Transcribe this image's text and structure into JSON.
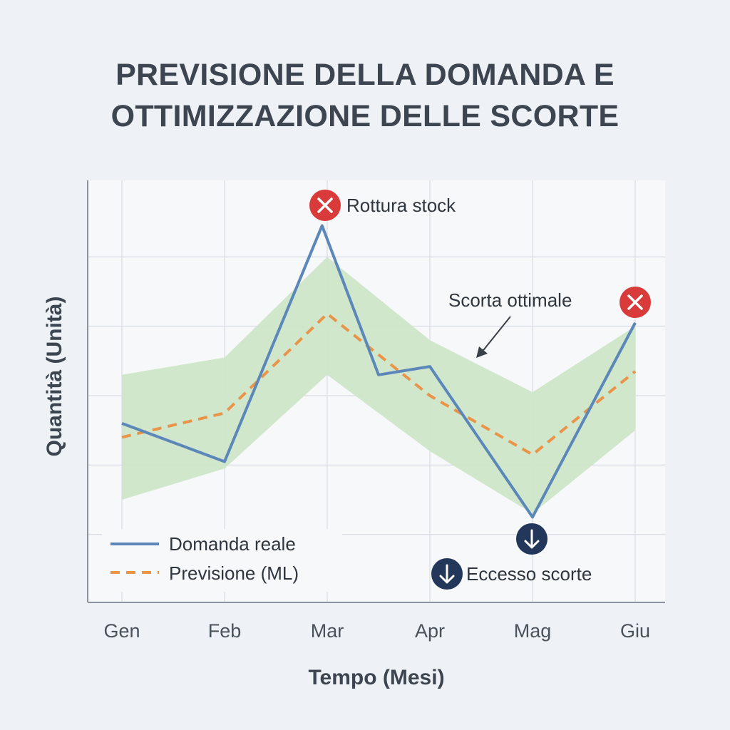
{
  "title": {
    "line1": "PREVISIONE DELLA DOMANDA E",
    "line2": "OTTIMIZZAZIONE DELLE SCORTE"
  },
  "colors": {
    "demand": "#5b87b9",
    "forecast": "#e8954a",
    "band": "#cfe6c9",
    "stockout": "#d93a3a",
    "excess": "#22375a"
  },
  "chart_data": {
    "type": "line",
    "categories": [
      "Gen",
      "Feb",
      "Mar",
      "Apr",
      "Mag",
      "Giu"
    ],
    "xlabel": "Tempo (Mesi)",
    "ylabel": "Quantità (Unità)",
    "ylim": [
      0,
      6
    ],
    "grid": true,
    "legend_position": "bottom-left",
    "series": [
      {
        "name": "Domanda reale",
        "style": "solid",
        "x": [
          0,
          1,
          1.95,
          2.5,
          3,
          4,
          5
        ],
        "values": [
          2.6,
          2.05,
          5.45,
          3.3,
          3.42,
          1.25,
          4.05
        ]
      },
      {
        "name": "Previsione (ML)",
        "style": "dashed",
        "x": [
          0,
          1,
          2,
          3,
          4,
          5
        ],
        "values": [
          2.4,
          2.75,
          4.18,
          3.0,
          2.15,
          3.35
        ]
      }
    ],
    "band": {
      "label": "Scorta ottimale",
      "x": [
        0,
        1,
        2,
        3,
        4,
        5
      ],
      "upper": [
        3.3,
        3.55,
        5.0,
        3.8,
        3.05,
        4.0
      ],
      "lower": [
        1.5,
        1.95,
        3.3,
        2.2,
        1.3,
        2.5
      ]
    },
    "annotations": [
      {
        "type": "stockout",
        "text": "Rottura stock"
      },
      {
        "type": "stockout",
        "text": ""
      },
      {
        "type": "excess",
        "text": ""
      },
      {
        "type": "excess",
        "text": "Eccesso scorte"
      }
    ]
  }
}
